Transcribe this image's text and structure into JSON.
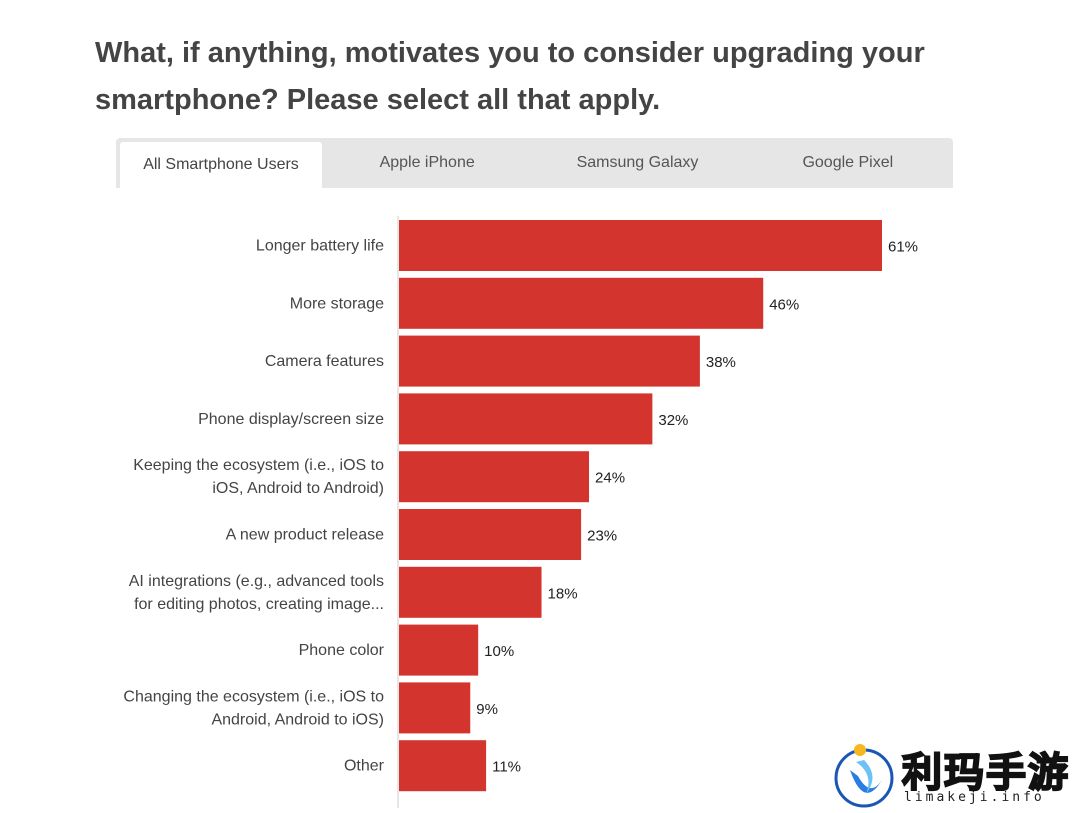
{
  "title": "What, if anything, motivates you to consider upgrading your smartphone? Please select all that apply.",
  "tabs": [
    {
      "label": "All Smartphone Users",
      "active": true
    },
    {
      "label": "Apple iPhone",
      "active": false
    },
    {
      "label": "Samsung Galaxy",
      "active": false
    },
    {
      "label": "Google Pixel",
      "active": false
    }
  ],
  "colors": {
    "bar": "#d3352e",
    "label": "#444444"
  },
  "chart_data": {
    "type": "bar",
    "orientation": "horizontal",
    "categories": [
      [
        "Longer battery life"
      ],
      [
        "More storage"
      ],
      [
        "Camera features"
      ],
      [
        "Phone display/screen size"
      ],
      [
        "Keeping the ecosystem (i.e., iOS to",
        "iOS, Android to Android)"
      ],
      [
        "A new product release"
      ],
      [
        "AI integrations (e.g., advanced tools",
        "for editing photos, creating image..."
      ],
      [
        "Phone color"
      ],
      [
        "Changing the ecosystem (i.e., iOS to",
        "Android, Android to iOS)"
      ],
      [
        "Other"
      ]
    ],
    "values": [
      61,
      46,
      38,
      32,
      24,
      23,
      18,
      10,
      9,
      11
    ],
    "value_labels": [
      "61%",
      "46%",
      "38%",
      "32%",
      "24%",
      "23%",
      "18%",
      "10%",
      "9%",
      "11%"
    ],
    "xlim": [
      0,
      61
    ]
  },
  "watermark": {
    "text": "利玛手游",
    "sub": "limakeji.info"
  }
}
